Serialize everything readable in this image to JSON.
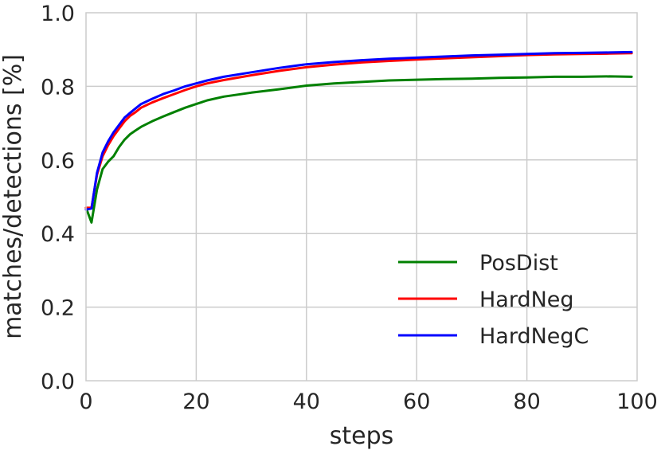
{
  "chart_data": {
    "type": "line",
    "title": "",
    "xlabel": "steps",
    "ylabel": "matches/detections [%]",
    "xlim": [
      0,
      100
    ],
    "ylim": [
      0.0,
      1.0
    ],
    "xticks": [
      0,
      20,
      40,
      60,
      80,
      100
    ],
    "yticks": [
      0.0,
      0.2,
      0.4,
      0.6,
      0.8,
      1.0
    ],
    "xtick_labels": [
      "0",
      "20",
      "40",
      "60",
      "80",
      "100"
    ],
    "ytick_labels": [
      "0.0",
      "0.2",
      "0.4",
      "0.6",
      "0.8",
      "1.0"
    ],
    "grid": true,
    "legend_position": "lower-right",
    "series": [
      {
        "name": "PosDist",
        "color": "#008000",
        "x": [
          0,
          1,
          2,
          3,
          4,
          5,
          6,
          7,
          8,
          9,
          10,
          12,
          14,
          16,
          18,
          20,
          22,
          25,
          30,
          35,
          40,
          45,
          50,
          55,
          60,
          65,
          70,
          75,
          80,
          85,
          90,
          95,
          99
        ],
        "y": [
          0.47,
          0.43,
          0.52,
          0.575,
          0.595,
          0.61,
          0.635,
          0.655,
          0.67,
          0.68,
          0.69,
          0.705,
          0.718,
          0.73,
          0.742,
          0.752,
          0.762,
          0.772,
          0.783,
          0.792,
          0.802,
          0.808,
          0.812,
          0.816,
          0.818,
          0.82,
          0.821,
          0.823,
          0.824,
          0.826,
          0.826,
          0.827,
          0.826
        ]
      },
      {
        "name": "HardNeg",
        "color": "#ff0000",
        "x": [
          0,
          1,
          2,
          3,
          4,
          5,
          6,
          7,
          8,
          9,
          10,
          12,
          14,
          16,
          18,
          20,
          22,
          25,
          30,
          35,
          40,
          45,
          50,
          55,
          60,
          65,
          70,
          75,
          80,
          85,
          90,
          95,
          99
        ],
        "y": [
          0.47,
          0.47,
          0.56,
          0.61,
          0.64,
          0.665,
          0.685,
          0.705,
          0.72,
          0.73,
          0.742,
          0.756,
          0.768,
          0.779,
          0.79,
          0.8,
          0.808,
          0.817,
          0.83,
          0.842,
          0.852,
          0.859,
          0.865,
          0.869,
          0.873,
          0.876,
          0.879,
          0.882,
          0.885,
          0.887,
          0.888,
          0.889,
          0.89
        ]
      },
      {
        "name": "HardNegC",
        "color": "#0000ff",
        "x": [
          0,
          1,
          2,
          3,
          4,
          5,
          6,
          7,
          8,
          9,
          10,
          12,
          14,
          16,
          18,
          20,
          22,
          25,
          30,
          35,
          40,
          45,
          50,
          55,
          60,
          65,
          70,
          75,
          80,
          85,
          90,
          95,
          99
        ],
        "y": [
          0.465,
          0.468,
          0.565,
          0.62,
          0.65,
          0.675,
          0.695,
          0.715,
          0.728,
          0.74,
          0.752,
          0.766,
          0.779,
          0.789,
          0.8,
          0.808,
          0.816,
          0.826,
          0.838,
          0.85,
          0.86,
          0.866,
          0.871,
          0.875,
          0.878,
          0.881,
          0.884,
          0.886,
          0.888,
          0.89,
          0.891,
          0.892,
          0.893
        ]
      }
    ]
  }
}
